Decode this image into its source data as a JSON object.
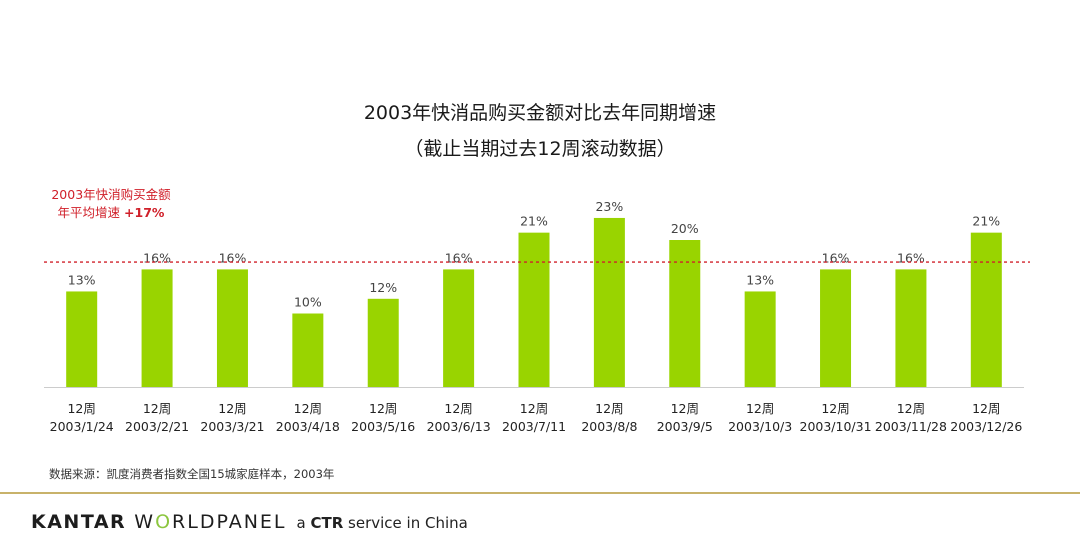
{
  "title_line1": "2003年快消品购买金额对比去年同期增速",
  "title_line2": "（截止当期过去12周滚动数据）",
  "avg_note_line1": "2003年快消购买金额",
  "avg_note_line2_prefix": "年平均增速 ",
  "avg_note_value": "+17%",
  "source": "数据来源：凯度消费者指数全国15城家庭样本，2003年",
  "footer": {
    "brand_a": "KANTAR",
    "brand_b1": "W",
    "brand_b2": "O",
    "brand_b3": "RLDPANEL",
    "tag_a": "a ",
    "tag_b": "CTR",
    "tag_c": " service in China"
  },
  "colors": {
    "bar": "#99d400",
    "avg_line": "#d0202a",
    "axis": "#cccccc"
  },
  "chart_data": {
    "type": "bar",
    "period_label": "12周",
    "categories": [
      "2003/1/24",
      "2003/2/21",
      "2003/3/21",
      "2003/4/18",
      "2003/5/16",
      "2003/6/13",
      "2003/7/11",
      "2003/8/8",
      "2003/9/5",
      "2003/10/3",
      "2003/10/31",
      "2003/11/28",
      "2003/12/26"
    ],
    "values": [
      13,
      16,
      16,
      10,
      12,
      16,
      21,
      23,
      20,
      13,
      16,
      16,
      21
    ],
    "value_labels": [
      "13%",
      "16%",
      "16%",
      "10%",
      "12%",
      "16%",
      "21%",
      "23%",
      "20%",
      "13%",
      "16%",
      "16%",
      "21%"
    ],
    "average": 17,
    "ylim": [
      0,
      25
    ],
    "grid": false,
    "legend": "none"
  }
}
